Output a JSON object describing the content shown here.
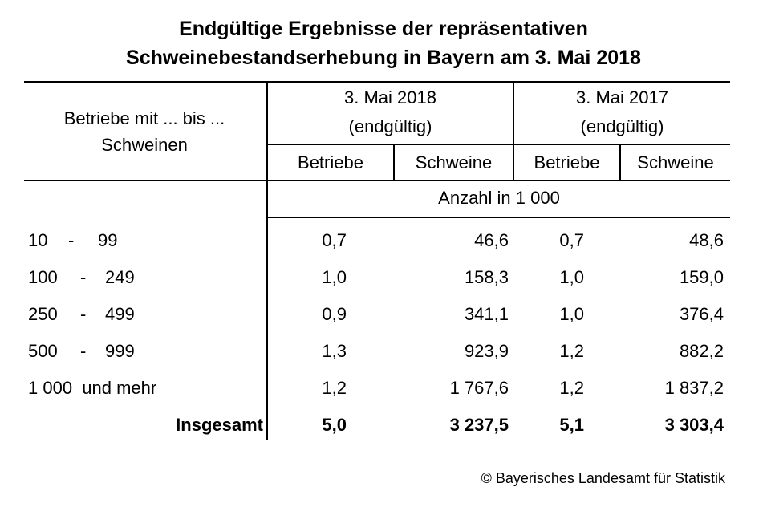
{
  "title": {
    "line1": "Endgültige Ergebnisse der repräsentativen",
    "line2": "Schweinebestandserhebung in Bayern am 3. Mai 2018"
  },
  "header": {
    "row_label_line1": "Betriebe mit ... bis ...",
    "row_label_line2": "Schweinen",
    "col2018_line1": "3. Mai 2018",
    "col2018_line2": "(endgültig)",
    "col2017_line1": "3. Mai 2017",
    "col2017_line2": "(endgültig)",
    "sub": [
      "Betriebe",
      "Schweine",
      "Betriebe",
      "Schweine"
    ],
    "unit": "Anzahl in 1 000"
  },
  "rows": [
    {
      "from": "10",
      "dash": "-",
      "to": "99",
      "b2018": "0,7",
      "s2018": "46,6",
      "b2017": "0,7",
      "s2017": "48,6"
    },
    {
      "from": "100",
      "dash": "-",
      "to": "249",
      "b2018": "1,0",
      "s2018": "158,3",
      "b2017": "1,0",
      "s2017": "159,0"
    },
    {
      "from": "250",
      "dash": "-",
      "to": "499",
      "b2018": "0,9",
      "s2018": "341,1",
      "b2017": "1,0",
      "s2017": "376,4"
    },
    {
      "from": "500",
      "dash": "-",
      "to": "999",
      "b2018": "1,3",
      "s2018": "923,9",
      "b2017": "1,2",
      "s2017": "882,2"
    }
  ],
  "row_last": {
    "label": "1 000  und mehr",
    "b2018": "1,2",
    "s2018": "1 767,6",
    "b2017": "1,2",
    "s2017": "1 837,2"
  },
  "total": {
    "label": "Insgesamt",
    "b2018": "5,0",
    "s2018": "3 237,5",
    "b2017": "5,1",
    "s2017": "3 303,4"
  },
  "copyright": "© Bayerisches Landesamt für Statistik"
}
